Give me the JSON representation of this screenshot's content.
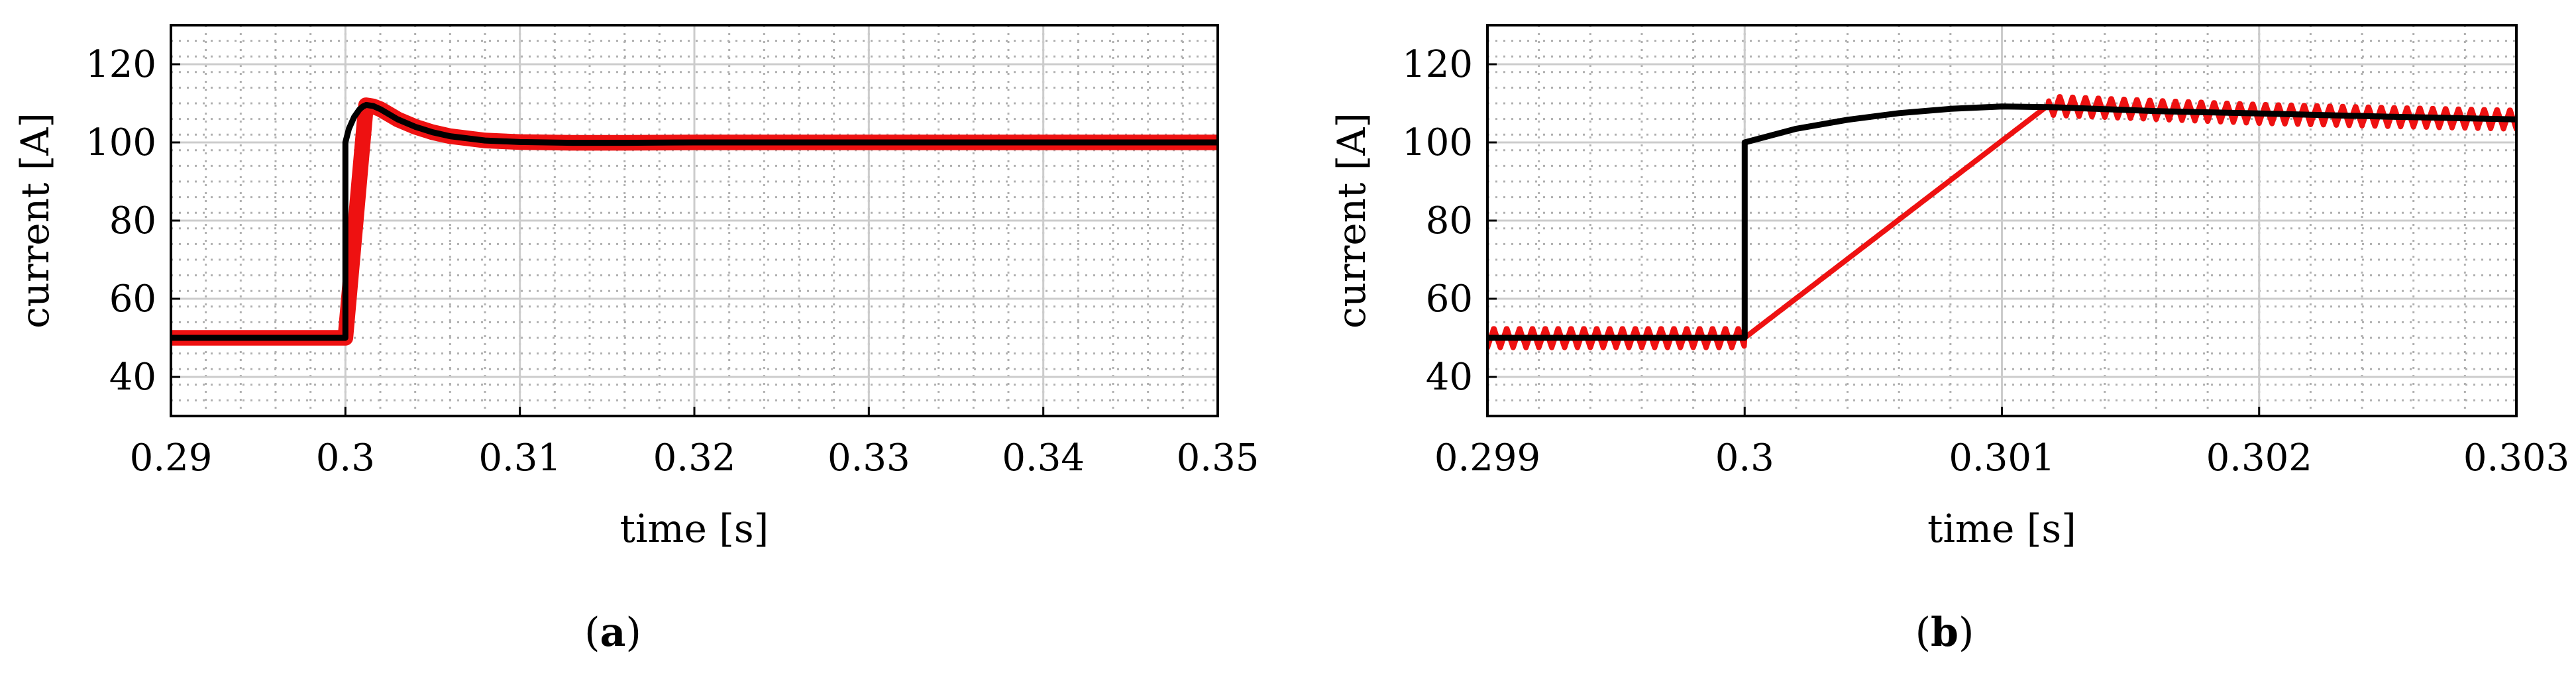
{
  "colors": {
    "reference": "#000000",
    "measured": "#ee1111",
    "grid_major": "#cccccc",
    "grid_minor": "#b0b0b0"
  },
  "panels": [
    {
      "label_open": "(",
      "label_letter": "a",
      "label_close": ")"
    },
    {
      "label_open": "(",
      "label_letter": "b",
      "label_close": ")"
    }
  ],
  "chart_data": [
    {
      "type": "line",
      "xlabel": "time [s]",
      "ylabel": "current [A]",
      "xlim": [
        0.29,
        0.35
      ],
      "ylim": [
        30,
        130
      ],
      "xticks": [
        0.29,
        0.3,
        0.31,
        0.32,
        0.33,
        0.34,
        0.35
      ],
      "xtick_labels": [
        "0.29",
        "0.3",
        "0.31",
        "0.32",
        "0.33",
        "0.34",
        "0.35"
      ],
      "yticks": [
        40,
        60,
        80,
        100,
        120
      ],
      "ytick_labels": [
        "40",
        "60",
        "80",
        "100",
        "120"
      ],
      "grid": "major and minor (dotted)",
      "series": [
        {
          "color": "#000000",
          "x": [
            0.29,
            0.3,
            0.3,
            0.3002,
            0.3005,
            0.3008,
            0.301,
            0.3012,
            0.3016,
            0.302,
            0.3025,
            0.303,
            0.304,
            0.305,
            0.306,
            0.308,
            0.31,
            0.313,
            0.316,
            0.32,
            0.35
          ],
          "y": [
            50,
            50,
            100,
            103.5,
            106.5,
            108.4,
            109.2,
            109.6,
            109.3,
            108.5,
            107.2,
            105.9,
            104.0,
            102.6,
            101.6,
            100.5,
            100.1,
            99.9,
            99.9,
            100,
            100
          ]
        },
        {
          "color": "#ee1111",
          "band": 4,
          "x": [
            0.29,
            0.3,
            0.30118,
            0.3016,
            0.302,
            0.3025,
            0.303,
            0.304,
            0.305,
            0.306,
            0.308,
            0.31,
            0.313,
            0.316,
            0.32,
            0.35
          ],
          "y": [
            50,
            50,
            109.5,
            109.2,
            108.5,
            107.2,
            105.9,
            104.0,
            102.6,
            101.6,
            100.5,
            100.1,
            99.9,
            99.9,
            100,
            100
          ]
        }
      ]
    },
    {
      "type": "line",
      "xlabel": "time [s]",
      "ylabel": "current [A]",
      "xlim": [
        0.299,
        0.303
      ],
      "ylim": [
        30,
        130
      ],
      "xticks": [
        0.299,
        0.3,
        0.301,
        0.302,
        0.303
      ],
      "xtick_labels": [
        "0.299",
        "0.3",
        "0.301",
        "0.302",
        "0.303"
      ],
      "yticks": [
        40,
        60,
        80,
        100,
        120
      ],
      "ytick_labels": [
        "40",
        "60",
        "80",
        "100",
        "120"
      ],
      "grid": "major and minor (dotted)",
      "series": [
        {
          "color": "#000000",
          "x": [
            0.299,
            0.3,
            0.3,
            0.3002,
            0.3004,
            0.3006,
            0.3008,
            0.301,
            0.3012,
            0.3014,
            0.3016,
            0.302,
            0.3025,
            0.303
          ],
          "y": [
            50,
            50,
            100,
            103.5,
            105.8,
            107.5,
            108.6,
            109.2,
            109.0,
            108.5,
            108.0,
            107.4,
            106.6,
            105.9
          ]
        },
        {
          "color": "#ee1111",
          "ripple_period": 5e-05,
          "ripple_amplitude": 2.5,
          "x": [
            0.299,
            0.3,
            0.30118,
            0.3016,
            0.302,
            0.3025,
            0.303
          ],
          "y": [
            50,
            50,
            109.5,
            108.4,
            107.4,
            106.6,
            105.9
          ]
        }
      ]
    }
  ]
}
